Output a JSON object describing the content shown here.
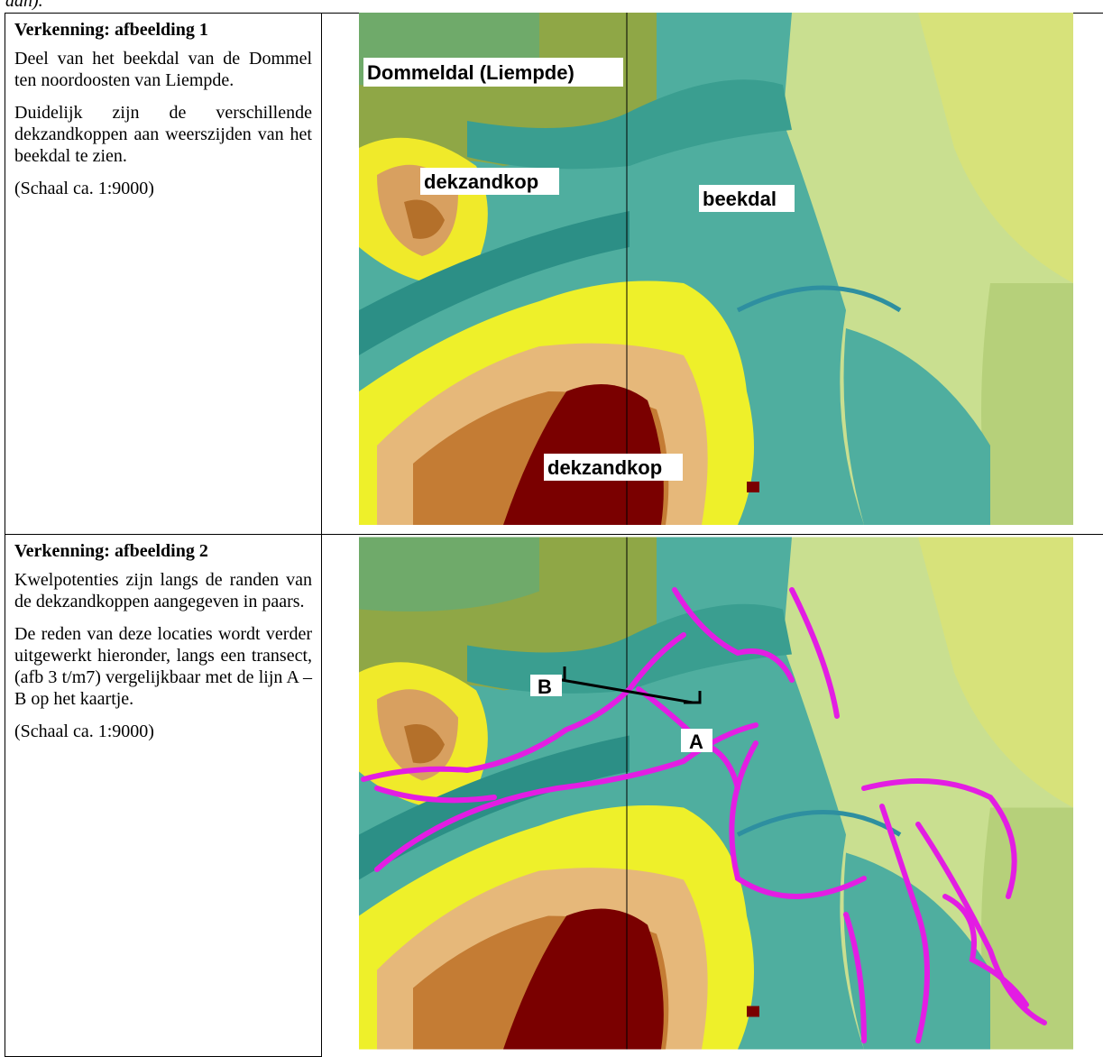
{
  "fragment": "aan).",
  "table": {
    "rows": [
      {
        "heading": "Verkenning: afbeelding 1",
        "paragraphs": [
          "Deel van het beekdal van de Dommel ten noordoosten van Liempde.",
          "Duidelijk zijn de verschillende dekzandkoppen aan weerszijden van het beekdal te zien.",
          "(Schaal ca. 1:9000)"
        ],
        "map_labels": [
          "Dommeldal (Liempde)",
          "dekzandkop",
          "beekdal",
          "dekzandkop"
        ]
      },
      {
        "heading": "Verkenning: afbeelding 2",
        "paragraphs": [
          "Kwelpotenties zijn langs de randen van de dekzandkoppen aangegeven in paars.",
          "De reden van deze locaties wordt verder uitgewerkt hieronder, langs een transect, (afb 3 t/m7) vergelijkbaar met de lijn A – B op het kaartje.",
          "(Schaal ca. 1:9000)"
        ],
        "map_labels": [
          "B",
          "A"
        ]
      }
    ]
  }
}
